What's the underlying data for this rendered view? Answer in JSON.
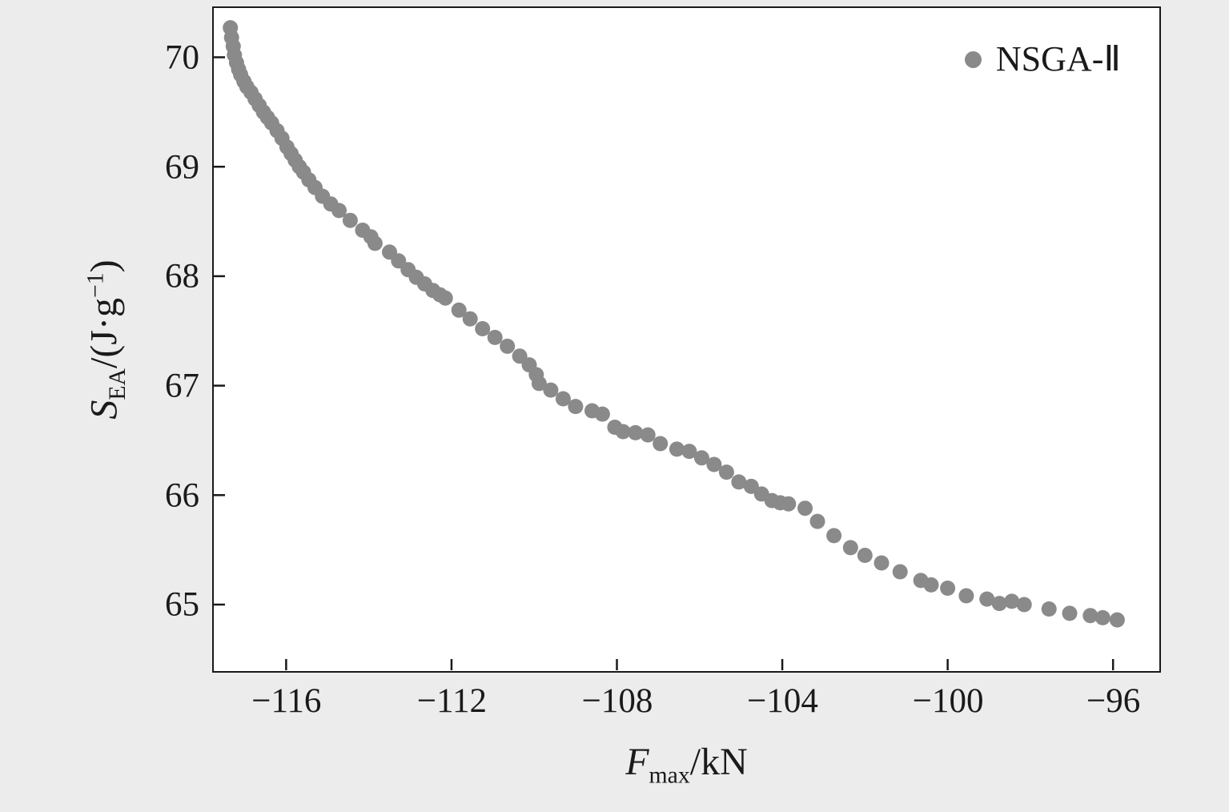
{
  "figure": {
    "background": "#ececec",
    "plot_background": "#ffffff",
    "border_color": "#1a1a1a"
  },
  "legend": {
    "label": "NSGA-Ⅱ",
    "marker_color": "#8a8a8a"
  },
  "axes": {
    "xlabel": {
      "var": "F",
      "sub": "max",
      "rest": "/kN"
    },
    "ylabel": {
      "var": "S",
      "sub": "EA",
      "rest": "/(J·g",
      "sup": "−1",
      "close": ")"
    },
    "x_tick_labels": [
      "−116",
      "−112",
      "−108",
      "−104",
      "−100",
      "−96"
    ],
    "y_tick_labels": [
      "65",
      "66",
      "67",
      "68",
      "69",
      "70"
    ]
  },
  "chart_data": {
    "type": "scatter",
    "title": "",
    "xlabel": "F_max/kN",
    "ylabel": "S_EA/(J·g⁻¹)",
    "xlim": [
      -117.75,
      -94.9
    ],
    "ylim": [
      64.4,
      70.45
    ],
    "x_tick_values": [
      -116,
      -112,
      -108,
      -104,
      -100,
      -96
    ],
    "y_tick_values": [
      65,
      66,
      67,
      68,
      69,
      70
    ],
    "grid": false,
    "legend_position": "upper right",
    "marker": {
      "shape": "circle",
      "radius_px": 9.5,
      "color": "#8a8a8a"
    },
    "series": [
      {
        "name": "NSGA-Ⅱ",
        "color": "#8a8a8a",
        "points": [
          [
            -117.35,
            70.27
          ],
          [
            -117.32,
            70.18
          ],
          [
            -117.28,
            70.1
          ],
          [
            -117.25,
            70.02
          ],
          [
            -117.2,
            69.95
          ],
          [
            -117.15,
            69.89
          ],
          [
            -117.1,
            69.84
          ],
          [
            -117.02,
            69.78
          ],
          [
            -116.95,
            69.73
          ],
          [
            -116.85,
            69.68
          ],
          [
            -116.75,
            69.62
          ],
          [
            -116.65,
            69.56
          ],
          [
            -116.55,
            69.5
          ],
          [
            -116.45,
            69.45
          ],
          [
            -116.35,
            69.4
          ],
          [
            -116.22,
            69.33
          ],
          [
            -116.1,
            69.26
          ],
          [
            -115.98,
            69.18
          ],
          [
            -115.88,
            69.12
          ],
          [
            -115.78,
            69.06
          ],
          [
            -115.68,
            69.0
          ],
          [
            -115.58,
            68.95
          ],
          [
            -115.45,
            68.88
          ],
          [
            -115.3,
            68.81
          ],
          [
            -115.12,
            68.73
          ],
          [
            -114.92,
            68.66
          ],
          [
            -114.72,
            68.6
          ],
          [
            -114.45,
            68.51
          ],
          [
            -114.15,
            68.42
          ],
          [
            -113.95,
            68.36
          ],
          [
            -113.85,
            68.3
          ],
          [
            -113.5,
            68.22
          ],
          [
            -113.28,
            68.14
          ],
          [
            -113.05,
            68.06
          ],
          [
            -112.85,
            67.99
          ],
          [
            -112.65,
            67.93
          ],
          [
            -112.45,
            67.87
          ],
          [
            -112.28,
            67.83
          ],
          [
            -112.15,
            67.8
          ],
          [
            -111.82,
            67.69
          ],
          [
            -111.55,
            67.61
          ],
          [
            -111.25,
            67.52
          ],
          [
            -110.95,
            67.44
          ],
          [
            -110.65,
            67.36
          ],
          [
            -110.35,
            67.27
          ],
          [
            -110.12,
            67.19
          ],
          [
            -109.95,
            67.1
          ],
          [
            -109.88,
            67.02
          ],
          [
            -109.6,
            66.96
          ],
          [
            -109.3,
            66.88
          ],
          [
            -109.0,
            66.81
          ],
          [
            -108.6,
            66.77
          ],
          [
            -108.35,
            66.74
          ],
          [
            -108.05,
            66.62
          ],
          [
            -107.85,
            66.58
          ],
          [
            -107.55,
            66.57
          ],
          [
            -107.25,
            66.55
          ],
          [
            -106.95,
            66.47
          ],
          [
            -106.55,
            66.42
          ],
          [
            -106.25,
            66.4
          ],
          [
            -105.95,
            66.34
          ],
          [
            -105.65,
            66.28
          ],
          [
            -105.35,
            66.21
          ],
          [
            -105.05,
            66.12
          ],
          [
            -104.75,
            66.08
          ],
          [
            -104.5,
            66.01
          ],
          [
            -104.25,
            65.95
          ],
          [
            -104.05,
            65.93
          ],
          [
            -103.85,
            65.92
          ],
          [
            -103.45,
            65.88
          ],
          [
            -103.15,
            65.76
          ],
          [
            -102.75,
            65.63
          ],
          [
            -102.35,
            65.52
          ],
          [
            -102.0,
            65.45
          ],
          [
            -101.6,
            65.38
          ],
          [
            -101.15,
            65.3
          ],
          [
            -100.65,
            65.22
          ],
          [
            -100.4,
            65.18
          ],
          [
            -100.0,
            65.15
          ],
          [
            -99.55,
            65.08
          ],
          [
            -99.05,
            65.05
          ],
          [
            -98.75,
            65.01
          ],
          [
            -98.45,
            65.03
          ],
          [
            -98.15,
            65.0
          ],
          [
            -97.55,
            64.96
          ],
          [
            -97.05,
            64.92
          ],
          [
            -96.55,
            64.9
          ],
          [
            -96.25,
            64.88
          ],
          [
            -95.9,
            64.86
          ]
        ]
      }
    ]
  }
}
